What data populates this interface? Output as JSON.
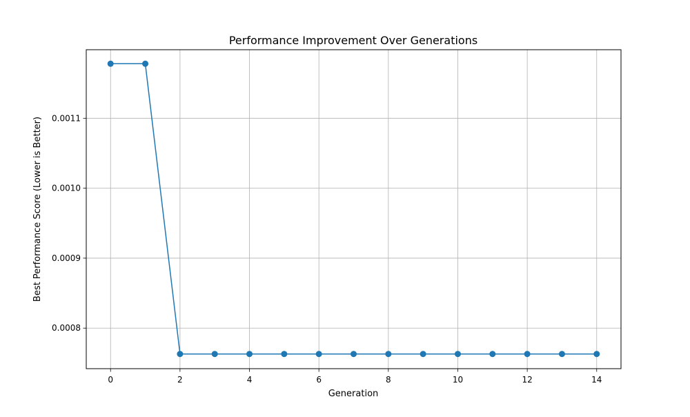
{
  "chart_data": {
    "type": "line",
    "title": "Performance Improvement Over Generations",
    "xlabel": "Generation",
    "ylabel": "Best Performance Score (Lower is Better)",
    "xlim": [
      -0.7,
      14.7
    ],
    "ylim": [
      0.000742,
      0.001198
    ],
    "xticks": [
      0,
      2,
      4,
      6,
      8,
      10,
      12,
      14
    ],
    "xtick_labels": [
      "0",
      "2",
      "4",
      "6",
      "8",
      "10",
      "12",
      "14"
    ],
    "yticks": [
      0.0008,
      0.0009,
      0.001,
      0.0011
    ],
    "ytick_labels": [
      "0.0008",
      "0.0009",
      "0.0010",
      "0.0011"
    ],
    "grid": true,
    "legend": "none",
    "series": [
      {
        "color": "#1f77b4",
        "marker": "circle",
        "x": [
          0,
          1,
          2,
          3,
          4,
          5,
          6,
          7,
          8,
          9,
          10,
          11,
          12,
          13,
          14
        ],
        "y": [
          0.001178,
          0.001178,
          0.000763,
          0.000763,
          0.000763,
          0.000763,
          0.000763,
          0.000763,
          0.000763,
          0.000763,
          0.000763,
          0.000763,
          0.000763,
          0.000763,
          0.000763
        ]
      }
    ]
  }
}
